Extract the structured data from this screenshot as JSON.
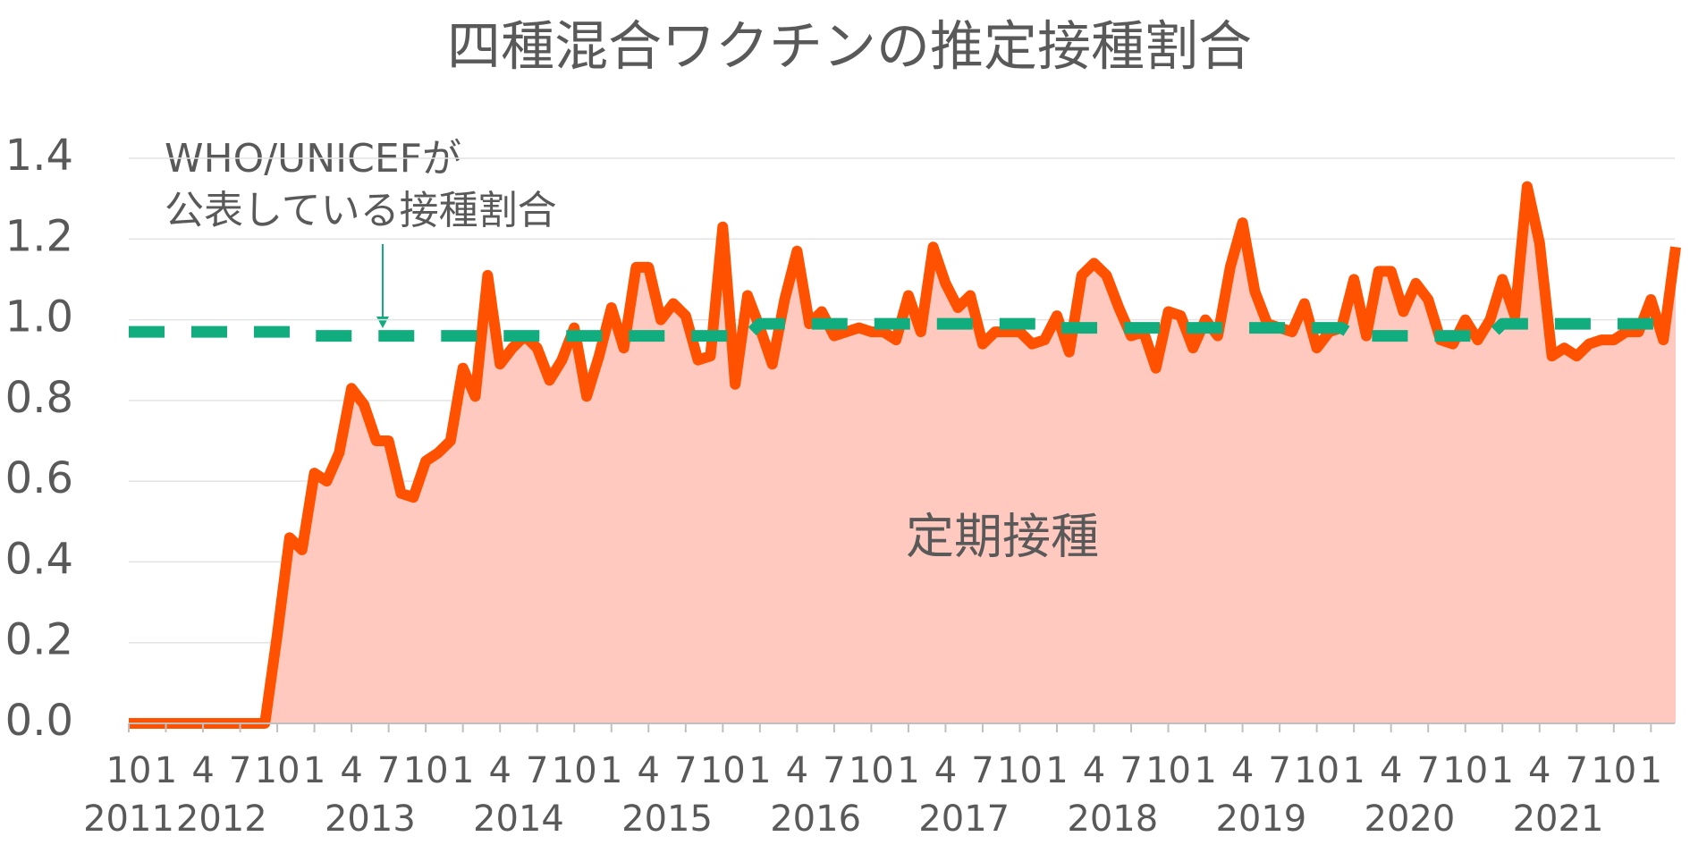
{
  "chart_data": {
    "type": "area",
    "title": "四種混合ワクチンの推定接種割合",
    "categories": [
      "10",
      null,
      null,
      "1",
      null,
      null,
      "4",
      null,
      null,
      "7",
      null,
      null,
      "10",
      null,
      null,
      "1",
      null,
      null,
      "4",
      null,
      null,
      "7",
      null,
      null,
      "10",
      null,
      null,
      "1",
      null,
      null,
      "4",
      null,
      null,
      "7",
      null,
      null,
      "10",
      null,
      null,
      "1",
      null,
      null,
      "4",
      null,
      null,
      "7",
      null,
      null,
      "10",
      null,
      null,
      "1",
      null,
      null,
      "4",
      null,
      null,
      "7",
      null,
      null,
      "10",
      null,
      null,
      "1",
      null,
      null,
      "4",
      null,
      null,
      "7",
      null,
      null,
      "10",
      null,
      null,
      "1",
      null,
      null,
      "4",
      null,
      null,
      "7",
      null,
      null,
      "10",
      null,
      null,
      "1",
      null,
      null,
      "4",
      null,
      null,
      "7",
      null,
      null,
      "10",
      null,
      null,
      "1",
      null,
      null,
      "4",
      null,
      null,
      "7",
      null,
      null,
      "10",
      null,
      null,
      "1",
      null,
      null,
      "4",
      null,
      null,
      "7",
      null,
      null,
      "10",
      null,
      null,
      "1",
      null,
      null
    ],
    "years": [
      "2011",
      "2012",
      "2013",
      "2014",
      "2015",
      "2016",
      "2017",
      "2018",
      "2019",
      "2020",
      "2021"
    ],
    "series": [
      {
        "name": "定期接種",
        "color": "#ff5100",
        "fill": "#ffc9bf",
        "values": [
          0,
          0,
          0,
          0,
          0,
          0,
          0,
          0,
          0,
          0,
          0,
          0,
          0.22,
          0.46,
          0.43,
          0.62,
          0.6,
          0.67,
          0.83,
          0.79,
          0.7,
          0.7,
          0.57,
          0.56,
          0.65,
          0.67,
          0.7,
          0.88,
          0.81,
          1.11,
          0.89,
          0.93,
          0.96,
          0.93,
          0.85,
          0.9,
          0.98,
          0.81,
          0.91,
          1.03,
          0.93,
          1.13,
          1.13,
          1.0,
          1.04,
          1.01,
          0.9,
          0.91,
          1.23,
          0.84,
          1.06,
          0.98,
          0.89,
          1.05,
          1.17,
          0.99,
          1.02,
          0.96,
          0.97,
          0.98,
          0.97,
          0.97,
          0.95,
          1.06,
          0.97,
          1.18,
          1.09,
          1.03,
          1.06,
          0.94,
          0.97,
          0.97,
          0.97,
          0.94,
          0.95,
          1.01,
          0.92,
          1.11,
          1.14,
          1.11,
          1.03,
          0.96,
          0.97,
          0.88,
          1.02,
          1.01,
          0.93,
          1.0,
          0.96,
          1.13,
          1.24,
          1.07,
          0.99,
          0.98,
          0.97,
          1.04,
          0.93,
          0.97,
          0.98,
          1.1,
          0.96,
          1.12,
          1.12,
          1.02,
          1.09,
          1.05,
          0.95,
          0.94,
          1.0,
          0.95,
          1.0,
          1.1,
          1.01,
          1.33,
          1.19,
          0.91,
          0.93,
          0.91,
          0.94,
          0.95,
          0.95,
          0.97,
          0.97,
          1.05,
          0.95,
          1.18
        ]
      },
      {
        "color": "#12ad7e",
        "dashed": true,
        "values": [
          0.97,
          0.97,
          0.97,
          0.97,
          0.97,
          0.97,
          0.97,
          0.97,
          0.97,
          0.97,
          0.97,
          0.97,
          0.97,
          0.97,
          0.97,
          0.96,
          0.96,
          0.96,
          0.96,
          0.96,
          0.96,
          0.96,
          0.96,
          0.96,
          0.96,
          0.96,
          0.96,
          0.96,
          0.96,
          0.96,
          0.96,
          0.96,
          0.96,
          0.96,
          0.96,
          0.96,
          0.96,
          0.96,
          0.96,
          0.96,
          0.96,
          0.96,
          0.96,
          0.96,
          0.96,
          0.96,
          0.96,
          0.96,
          0.96,
          0.96,
          0.96,
          0.99,
          0.99,
          0.99,
          0.99,
          0.99,
          0.99,
          0.99,
          0.99,
          0.99,
          0.99,
          0.99,
          0.99,
          0.99,
          0.99,
          0.99,
          0.99,
          0.99,
          0.99,
          0.99,
          0.99,
          0.99,
          0.99,
          0.99,
          0.99,
          0.98,
          0.98,
          0.98,
          0.98,
          0.98,
          0.98,
          0.98,
          0.98,
          0.98,
          0.98,
          0.98,
          0.98,
          0.98,
          0.98,
          0.98,
          0.98,
          0.98,
          0.98,
          0.98,
          0.98,
          0.98,
          0.98,
          0.98,
          0.98,
          0.96,
          0.96,
          0.96,
          0.96,
          0.96,
          0.96,
          0.96,
          0.96,
          0.96,
          0.96,
          0.96,
          0.96,
          0.99,
          0.99,
          0.99,
          0.99,
          0.99,
          0.99,
          0.99,
          0.99,
          0.99,
          0.99,
          0.99,
          0.99,
          0.99,
          0.99,
          0.99
        ]
      }
    ],
    "annotation": [
      "WHO/UNICEFが",
      "公表している接種割合"
    ],
    "ylim": [
      0,
      1.4
    ],
    "yticks": [
      {
        "value": 0,
        "label": "0.0"
      },
      0.2,
      0.4,
      0.6,
      0.8,
      {
        "value": 1,
        "label": "1.0"
      },
      1.2,
      1.4
    ],
    "grid": true
  }
}
